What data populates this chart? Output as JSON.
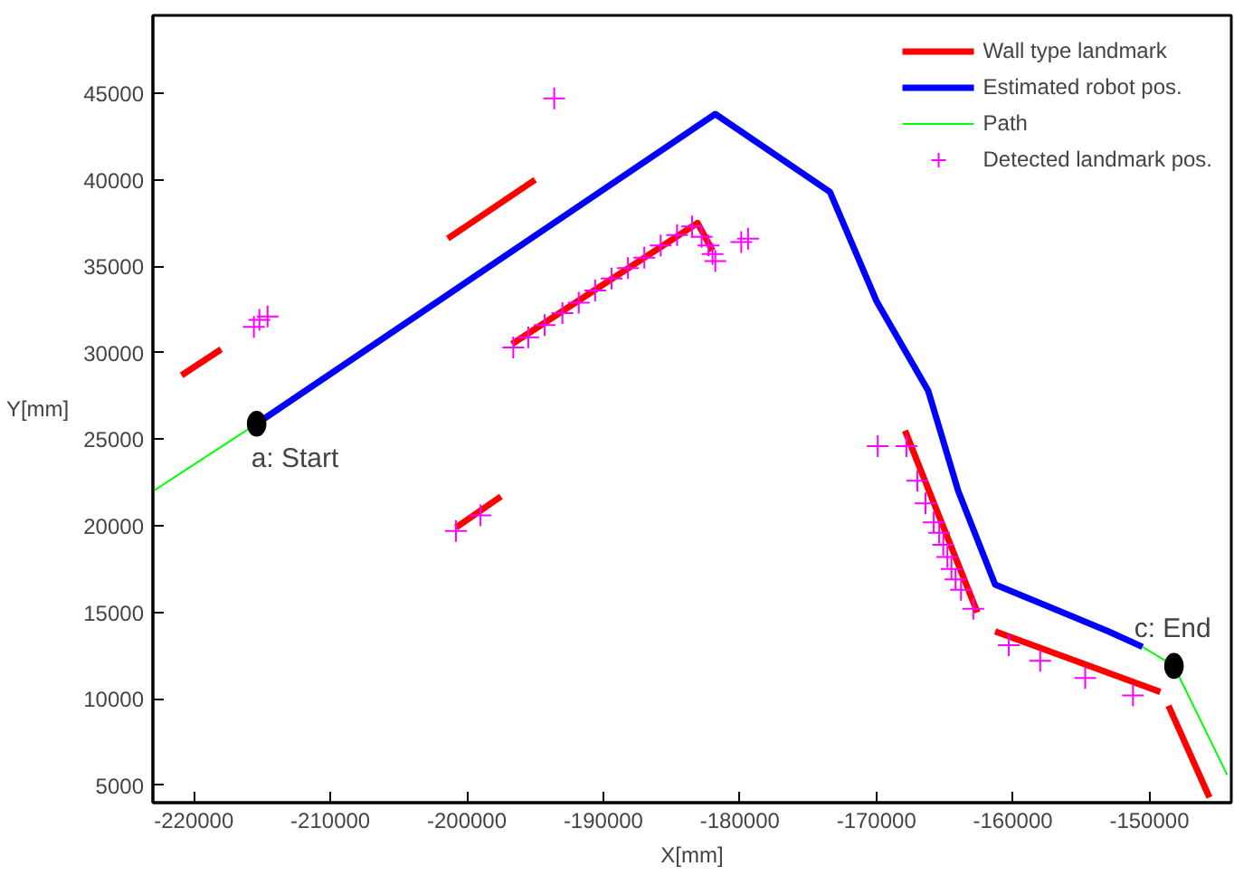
{
  "chart_data": {
    "type": "line",
    "xlabel": "X[mm]",
    "ylabel": "Y[mm]",
    "xlim": [
      -223000,
      -144000
    ],
    "ylim": [
      4000,
      49500
    ],
    "xticks": [
      -220000,
      -210000,
      -200000,
      -190000,
      -180000,
      -170000,
      -160000,
      -150000
    ],
    "yticks": [
      5000,
      10000,
      15000,
      20000,
      25000,
      30000,
      35000,
      40000,
      45000
    ],
    "grid": false,
    "legend": "top right",
    "series": [
      {
        "name": "Wall type landmark",
        "color": "#ff0000",
        "x": [
          -220900,
          -218000,
          null,
          -201400,
          -195000,
          null,
          -200800,
          -197500,
          null,
          -196700,
          -183100,
          -182000,
          null,
          -167900,
          -162600,
          null,
          -161300,
          -149200,
          null,
          -148600,
          -145600
        ],
        "values": [
          28700,
          30200,
          null,
          36600,
          40000,
          null,
          19900,
          21700,
          null,
          30500,
          37500,
          35900,
          null,
          25500,
          15000,
          null,
          13900,
          10400,
          null,
          9600,
          4300
        ]
      },
      {
        "name": "Estimated robot pos.",
        "color": "#0000ff",
        "x": [
          -215400,
          -181800,
          -173400,
          -170000,
          -166200,
          -164000,
          -161300,
          -157000,
          -153000,
          -150500
        ],
        "values": [
          25900,
          43800,
          39300,
          33000,
          27800,
          22000,
          16600,
          15200,
          13900,
          13000
        ]
      },
      {
        "name": "Path",
        "color": "#00ff00",
        "x": [
          -223000,
          -215400,
          null,
          -150500,
          -148200,
          -144300
        ],
        "values": [
          22000,
          25900,
          null,
          13000,
          11900,
          5600
        ]
      },
      {
        "name": "Detected landmark pos.",
        "type": "scatter",
        "marker": "cross",
        "color": "#ff00ff",
        "x": [
          -193600,
          -179400,
          -215200,
          -215600,
          -214600,
          -200800,
          -199000,
          -196600,
          -195500,
          -194300,
          -193000,
          -191800,
          -190600,
          -189400,
          -188200,
          -187000,
          -185800,
          -184600,
          -183500,
          -182800,
          -182300,
          -182000,
          -181800,
          -179900,
          -169900,
          -167800,
          -167000,
          -166400,
          -165800,
          -165400,
          -165100,
          -164800,
          -164500,
          -164200,
          -163800,
          -162900,
          -160300,
          -158000,
          -154700,
          -151200
        ],
        "values": [
          44700,
          36600,
          31900,
          31500,
          32100,
          19700,
          20600,
          30300,
          30900,
          31600,
          32300,
          32900,
          33600,
          34300,
          34900,
          35500,
          36200,
          36800,
          37300,
          36700,
          36200,
          35700,
          35300,
          36400,
          24600,
          24600,
          22600,
          21300,
          20200,
          19600,
          18900,
          18200,
          17500,
          16900,
          16300,
          15200,
          13100,
          12200,
          11200,
          10200
        ]
      },
      {
        "type": "scatter",
        "marker": "circle",
        "color": "#000000",
        "x": [
          -215400,
          -148200
        ],
        "values": [
          25900,
          11900
        ]
      }
    ],
    "annotations": [
      {
        "text": "a: Start",
        "x": -215400,
        "y": 25900
      },
      {
        "text": "c: End",
        "x": -148200,
        "y": 11900
      }
    ]
  }
}
